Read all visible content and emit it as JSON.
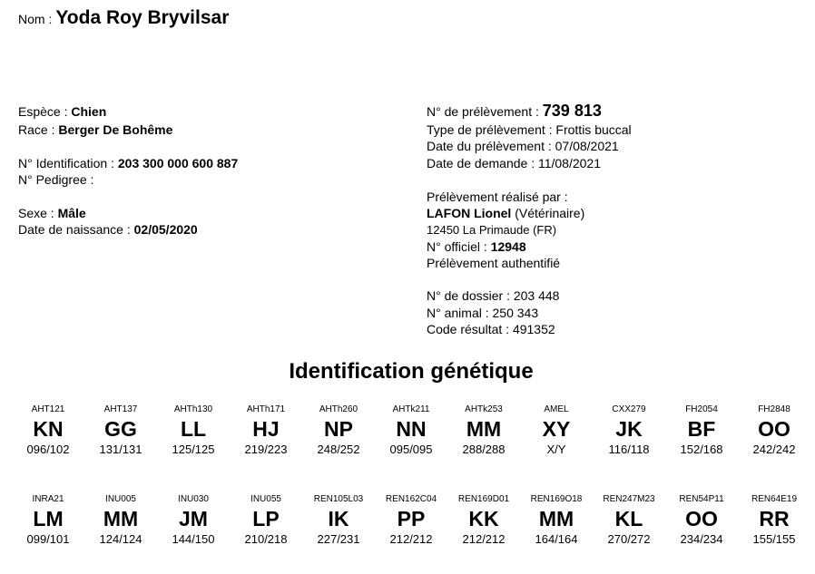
{
  "nom": {
    "label": "Nom :",
    "value": "Yoda Roy Bryvilsar"
  },
  "left": {
    "espece": {
      "label": "Espèce :",
      "value": "Chien"
    },
    "race": {
      "label": "Race :",
      "value": "Berger De Bohême"
    },
    "identification": {
      "label": "N° Identification :",
      "value": "203 300 000 600 887"
    },
    "pedigree": {
      "label": "N° Pedigree :"
    },
    "sexe": {
      "label": "Sexe :",
      "value": "Mâle"
    },
    "naissance": {
      "label": "Date de naissance :",
      "value": "02/05/2020"
    }
  },
  "right": {
    "prelevement_no": {
      "label": "N° de prélèvement :",
      "value": "739 813"
    },
    "type": "Type de prélèvement : Frottis buccal",
    "date_prel": "Date du prélèvement : 07/08/2021",
    "date_dem": "Date de demande : 11/08/2021",
    "realise_par": "Prélèvement réalisé par :",
    "vet_name": "LAFON Lionel",
    "vet_role": "(Vétérinaire)",
    "vet_address": "12450 La Primaude (FR)",
    "officiel": {
      "label": "N° officiel :",
      "value": "12948"
    },
    "authentifie": "Prélèvement authentifié",
    "dossier": "N° de dossier : 203 448",
    "animal": "N° animal : 250 343",
    "code": "Code résultat : 491352"
  },
  "section_title": "Identification génétique",
  "markers": [
    [
      {
        "m": "AHT121",
        "a": "KN",
        "s": "096/102"
      },
      {
        "m": "AHT137",
        "a": "GG",
        "s": "131/131"
      },
      {
        "m": "AHTh130",
        "a": "LL",
        "s": "125/125"
      },
      {
        "m": "AHTh171",
        "a": "HJ",
        "s": "219/223"
      },
      {
        "m": "AHTh260",
        "a": "NP",
        "s": "248/252"
      },
      {
        "m": "AHTk211",
        "a": "NN",
        "s": "095/095"
      },
      {
        "m": "AHTk253",
        "a": "MM",
        "s": "288/288"
      },
      {
        "m": "AMEL",
        "a": "XY",
        "s": "X/Y"
      },
      {
        "m": "CXX279",
        "a": "JK",
        "s": "116/118"
      },
      {
        "m": "FH2054",
        "a": "BF",
        "s": "152/168"
      },
      {
        "m": "FH2848",
        "a": "OO",
        "s": "242/242"
      }
    ],
    [
      {
        "m": "INRA21",
        "a": "LM",
        "s": "099/101"
      },
      {
        "m": "INU005",
        "a": "MM",
        "s": "124/124"
      },
      {
        "m": "INU030",
        "a": "JM",
        "s": "144/150"
      },
      {
        "m": "INU055",
        "a": "LP",
        "s": "210/218"
      },
      {
        "m": "REN105L03",
        "a": "IK",
        "s": "227/231"
      },
      {
        "m": "REN162C04",
        "a": "PP",
        "s": "212/212"
      },
      {
        "m": "REN169D01",
        "a": "KK",
        "s": "212/212"
      },
      {
        "m": "REN169O18",
        "a": "MM",
        "s": "164/164"
      },
      {
        "m": "REN247M23",
        "a": "KL",
        "s": "270/272"
      },
      {
        "m": "REN54P11",
        "a": "OO",
        "s": "234/234"
      },
      {
        "m": "REN64E19",
        "a": "RR",
        "s": "155/155"
      }
    ]
  ]
}
